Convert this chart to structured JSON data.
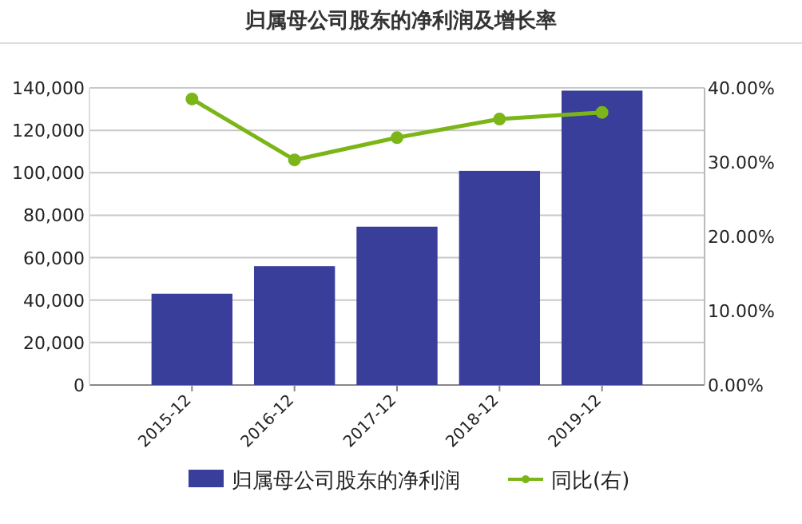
{
  "chart_data": {
    "type": "bar",
    "title": "归属母公司股东的净利润及增长率",
    "categories": [
      "2015-12",
      "2016-12",
      "2017-12",
      "2018-12",
      "2019-12"
    ],
    "series": [
      {
        "name": "归属母公司股东的净利润",
        "color": "#383e9a",
        "values": [
          43000,
          56000,
          74600,
          100900,
          138700
        ]
      },
      {
        "name": "同比(右)",
        "type": "line",
        "axis": "y2",
        "color": "#7cb518",
        "values": [
          38.5,
          30.3,
          33.3,
          35.8,
          36.7
        ]
      }
    ],
    "ylim": [
      0,
      140000
    ],
    "yticks": [
      {
        "value": 0,
        "label": "0"
      },
      {
        "value": 20000,
        "label": "20,000"
      },
      {
        "value": 40000,
        "label": "40,000"
      },
      {
        "value": 60000,
        "label": "60,000"
      },
      {
        "value": 80000,
        "label": "80,000"
      },
      {
        "value": 100000,
        "label": "100,000"
      },
      {
        "value": 120000,
        "label": "120,000"
      },
      {
        "value": 140000,
        "label": "140,000"
      }
    ],
    "y2lim": [
      0,
      40
    ],
    "y2ticks": [
      {
        "value": 0,
        "label": "0.00%"
      },
      {
        "value": 10,
        "label": "10.00%"
      },
      {
        "value": 20,
        "label": "20.00%"
      },
      {
        "value": 30,
        "label": "30.00%"
      },
      {
        "value": 40,
        "label": "40.00%"
      }
    ],
    "grid": "y",
    "legend": "bottom",
    "marker": "circle"
  }
}
